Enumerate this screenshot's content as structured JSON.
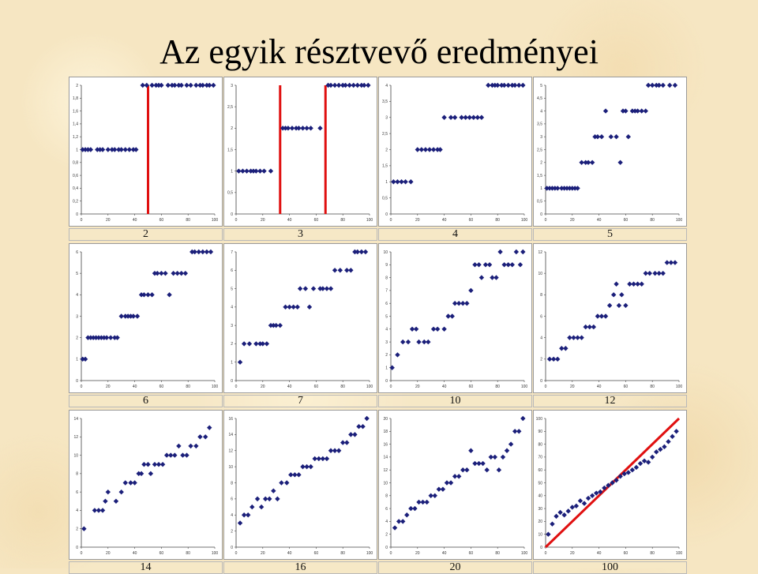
{
  "title": "Az egyik résztvevő eredményei",
  "chart_data": [
    {
      "type": "scatter",
      "caption": "2",
      "xlim": [
        0,
        100
      ],
      "ylim": [
        0,
        2
      ],
      "xticks": [
        "0",
        "20",
        "40",
        "60",
        "80",
        "100"
      ],
      "yticks": [
        "0",
        "0,2",
        "0,4",
        "0,6",
        "0,8",
        "1",
        "1,2",
        "1,4",
        "1,6",
        "1,8",
        "2"
      ],
      "vlines": [
        50
      ],
      "x": [
        1,
        3,
        5,
        7,
        12,
        14,
        16,
        20,
        23,
        25,
        28,
        30,
        33,
        36,
        39,
        41,
        46,
        49,
        53,
        56,
        58,
        60,
        65,
        68,
        70,
        73,
        75,
        79,
        82,
        86,
        89,
        91,
        94,
        96,
        99
      ],
      "y": [
        1,
        1,
        1,
        1,
        1,
        1,
        1,
        1,
        1,
        1,
        1,
        1,
        1,
        1,
        1,
        1,
        2,
        2,
        2,
        2,
        2,
        2,
        2,
        2,
        2,
        2,
        2,
        2,
        2,
        2,
        2,
        2,
        2,
        2,
        2
      ]
    },
    {
      "type": "scatter",
      "caption": "3",
      "xlim": [
        0,
        100
      ],
      "ylim": [
        0,
        3
      ],
      "xticks": [
        "0",
        "20",
        "40",
        "60",
        "80",
        "100"
      ],
      "yticks": [
        "0",
        "0,5",
        "1",
        "1,5",
        "2",
        "2,5",
        "3"
      ],
      "vlines": [
        33,
        67
      ],
      "x": [
        2,
        5,
        8,
        11,
        13,
        15,
        18,
        21,
        26,
        35,
        37,
        39,
        42,
        45,
        47,
        50,
        53,
        56,
        63,
        69,
        71,
        74,
        77,
        80,
        82,
        85,
        88,
        91,
        94,
        96,
        99
      ],
      "y": [
        1,
        1,
        1,
        1,
        1,
        1,
        1,
        1,
        1,
        2,
        2,
        2,
        2,
        2,
        2,
        2,
        2,
        2,
        2,
        3,
        3,
        3,
        3,
        3,
        3,
        3,
        3,
        3,
        3,
        3,
        3
      ]
    },
    {
      "type": "scatter",
      "caption": "4",
      "xlim": [
        0,
        100
      ],
      "ylim": [
        0,
        4
      ],
      "xticks": [
        "0",
        "20",
        "40",
        "60",
        "80",
        "100"
      ],
      "yticks": [
        "0",
        "0,5",
        "1",
        "1,5",
        "2",
        "2,5",
        "3",
        "3,5",
        "4"
      ],
      "x": [
        2,
        5,
        8,
        11,
        15,
        20,
        23,
        26,
        29,
        32,
        35,
        37,
        40,
        45,
        48,
        53,
        56,
        59,
        62,
        65,
        68,
        73,
        76,
        78,
        80,
        83,
        85,
        88,
        91,
        93,
        96,
        99
      ],
      "y": [
        1,
        1,
        1,
        1,
        1,
        2,
        2,
        2,
        2,
        2,
        2,
        2,
        3,
        3,
        3,
        3,
        3,
        3,
        3,
        3,
        3,
        4,
        4,
        4,
        4,
        4,
        4,
        4,
        4,
        4,
        4,
        4
      ]
    },
    {
      "type": "scatter",
      "caption": "5",
      "xlim": [
        0,
        100
      ],
      "ylim": [
        0,
        5
      ],
      "xticks": [
        "0",
        "20",
        "40",
        "60",
        "80",
        "100"
      ],
      "yticks": [
        "0",
        "0,5",
        "1",
        "1,5",
        "2",
        "2,5",
        "3",
        "3,5",
        "4",
        "4,5",
        "5"
      ],
      "x": [
        1,
        3,
        5,
        7,
        9,
        12,
        14,
        16,
        18,
        20,
        22,
        24,
        27,
        30,
        32,
        35,
        37,
        39,
        42,
        45,
        49,
        53,
        56,
        58,
        60,
        62,
        65,
        67,
        69,
        72,
        75,
        77,
        80,
        83,
        85,
        88,
        93,
        97
      ],
      "y": [
        1,
        1,
        1,
        1,
        1,
        1,
        1,
        1,
        1,
        1,
        1,
        1,
        2,
        2,
        2,
        2,
        3,
        3,
        3,
        4,
        3,
        3,
        2,
        4,
        4,
        3,
        4,
        4,
        4,
        4,
        4,
        5,
        5,
        5,
        5,
        5,
        5,
        5
      ]
    },
    {
      "type": "scatter",
      "caption": "6",
      "xlim": [
        0,
        100
      ],
      "ylim": [
        0,
        6
      ],
      "xticks": [
        "0",
        "20",
        "40",
        "60",
        "80",
        "100"
      ],
      "yticks": [
        "0",
        "1",
        "2",
        "3",
        "4",
        "5",
        "6"
      ],
      "x": [
        1,
        3,
        5,
        7,
        9,
        11,
        13,
        15,
        17,
        19,
        22,
        25,
        27,
        30,
        33,
        35,
        37,
        39,
        42,
        45,
        47,
        50,
        53,
        55,
        57,
        60,
        63,
        66,
        69,
        72,
        75,
        78,
        83,
        85,
        88,
        91,
        94,
        97
      ],
      "y": [
        1,
        1,
        2,
        2,
        2,
        2,
        2,
        2,
        2,
        2,
        2,
        2,
        2,
        3,
        3,
        3,
        3,
        3,
        3,
        4,
        4,
        4,
        4,
        5,
        5,
        5,
        5,
        4,
        5,
        5,
        5,
        5,
        6,
        6,
        6,
        6,
        6,
        6
      ]
    },
    {
      "type": "scatter",
      "caption": "7",
      "xlim": [
        0,
        100
      ],
      "ylim": [
        0,
        7
      ],
      "xticks": [
        "0",
        "20",
        "40",
        "60",
        "80",
        "100"
      ],
      "yticks": [
        "0",
        "1",
        "2",
        "3",
        "4",
        "5",
        "6",
        "7"
      ],
      "x": [
        3,
        6,
        10,
        15,
        18,
        20,
        23,
        26,
        28,
        30,
        33,
        37,
        40,
        43,
        46,
        48,
        52,
        55,
        58,
        63,
        65,
        68,
        71,
        74,
        78,
        83,
        86,
        89,
        91,
        94,
        97
      ],
      "y": [
        1,
        2,
        2,
        2,
        2,
        2,
        2,
        3,
        3,
        3,
        3,
        4,
        4,
        4,
        4,
        5,
        5,
        4,
        5,
        5,
        5,
        5,
        5,
        6,
        6,
        6,
        6,
        7,
        7,
        7,
        7
      ]
    },
    {
      "type": "scatter",
      "caption": "10",
      "xlim": [
        0,
        100
      ],
      "ylim": [
        0,
        10
      ],
      "xticks": [
        "0",
        "20",
        "40",
        "60",
        "80",
        "100"
      ],
      "yticks": [
        "0",
        "1",
        "2",
        "3",
        "4",
        "5",
        "6",
        "7",
        "8",
        "9",
        "10"
      ],
      "x": [
        1,
        5,
        9,
        13,
        16,
        19,
        21,
        25,
        28,
        32,
        35,
        40,
        43,
        46,
        48,
        51,
        54,
        57,
        60,
        63,
        66,
        68,
        71,
        74,
        76,
        79,
        82,
        85,
        88,
        91,
        94,
        97,
        99
      ],
      "y": [
        1,
        2,
        3,
        3,
        4,
        4,
        3,
        3,
        3,
        4,
        4,
        4,
        5,
        5,
        6,
        6,
        6,
        6,
        7,
        9,
        9,
        8,
        9,
        9,
        8,
        8,
        10,
        9,
        9,
        9,
        10,
        9,
        10
      ]
    },
    {
      "type": "scatter",
      "caption": "12",
      "xlim": [
        0,
        100
      ],
      "ylim": [
        0,
        12
      ],
      "xticks": [
        "0",
        "20",
        "40",
        "60",
        "80",
        "100"
      ],
      "yticks": [
        "0",
        "2",
        "4",
        "6",
        "8",
        "10",
        "12"
      ],
      "x": [
        3,
        6,
        9,
        12,
        15,
        18,
        21,
        24,
        27,
        30,
        33,
        36,
        39,
        42,
        45,
        48,
        51,
        53,
        55,
        57,
        60,
        63,
        66,
        69,
        72,
        75,
        78,
        82,
        85,
        88,
        91,
        94,
        97
      ],
      "y": [
        2,
        2,
        2,
        3,
        3,
        4,
        4,
        4,
        4,
        5,
        5,
        5,
        6,
        6,
        6,
        7,
        8,
        9,
        7,
        8,
        7,
        9,
        9,
        9,
        9,
        10,
        10,
        10,
        10,
        10,
        11,
        11,
        11
      ]
    },
    {
      "type": "scatter",
      "caption": "14",
      "xlim": [
        0,
        100
      ],
      "ylim": [
        0,
        14
      ],
      "xticks": [
        "0",
        "20",
        "40",
        "60",
        "80",
        "100"
      ],
      "yticks": [
        "0",
        "2",
        "4",
        "6",
        "8",
        "10",
        "12",
        "14"
      ],
      "x": [
        2,
        10,
        13,
        16,
        18,
        20,
        26,
        30,
        33,
        37,
        40,
        43,
        45,
        47,
        50,
        52,
        55,
        58,
        61,
        64,
        67,
        70,
        73,
        76,
        79,
        82,
        86,
        89,
        93,
        96
      ],
      "y": [
        2,
        4,
        4,
        4,
        5,
        6,
        5,
        6,
        7,
        7,
        7,
        8,
        8,
        9,
        9,
        8,
        9,
        9,
        9,
        10,
        10,
        10,
        11,
        10,
        10,
        11,
        11,
        12,
        12,
        13
      ]
    },
    {
      "type": "scatter",
      "caption": "16",
      "xlim": [
        0,
        100
      ],
      "ylim": [
        0,
        16
      ],
      "xticks": [
        "0",
        "20",
        "40",
        "60",
        "80",
        "100"
      ],
      "yticks": [
        "0",
        "2",
        "4",
        "6",
        "8",
        "10",
        "12",
        "14",
        "16"
      ],
      "x": [
        3,
        6,
        9,
        12,
        16,
        19,
        22,
        25,
        28,
        31,
        34,
        38,
        41,
        44,
        47,
        50,
        53,
        56,
        59,
        62,
        65,
        68,
        71,
        74,
        77,
        80,
        83,
        86,
        89,
        92,
        95,
        98
      ],
      "y": [
        3,
        4,
        4,
        5,
        6,
        5,
        6,
        6,
        7,
        6,
        8,
        8,
        9,
        9,
        9,
        10,
        10,
        10,
        11,
        11,
        11,
        11,
        12,
        12,
        12,
        13,
        13,
        14,
        14,
        15,
        15,
        16
      ]
    },
    {
      "type": "scatter",
      "caption": "20",
      "xlim": [
        0,
        100
      ],
      "ylim": [
        0,
        20
      ],
      "xticks": [
        "0",
        "20",
        "40",
        "60",
        "80",
        "100"
      ],
      "yticks": [
        "0",
        "2",
        "4",
        "6",
        "8",
        "10",
        "12",
        "14",
        "16",
        "18",
        "20"
      ],
      "x": [
        3,
        6,
        9,
        12,
        15,
        18,
        21,
        24,
        27,
        30,
        33,
        36,
        39,
        42,
        45,
        48,
        51,
        54,
        57,
        60,
        63,
        66,
        69,
        72,
        75,
        78,
        81,
        84,
        87,
        90,
        93,
        96,
        99
      ],
      "y": [
        3,
        4,
        4,
        5,
        6,
        6,
        7,
        7,
        7,
        8,
        8,
        9,
        9,
        10,
        10,
        11,
        11,
        12,
        12,
        15,
        13,
        13,
        13,
        12,
        14,
        14,
        12,
        14,
        15,
        16,
        18,
        18,
        20
      ]
    },
    {
      "type": "scatter",
      "caption": "100",
      "xlim": [
        0,
        100
      ],
      "ylim": [
        0,
        100
      ],
      "xticks": [
        "0",
        "20",
        "40",
        "60",
        "80",
        "100"
      ],
      "yticks": [
        "0",
        "10",
        "20",
        "30",
        "40",
        "50",
        "60",
        "70",
        "80",
        "90",
        "100"
      ],
      "diagonal": true,
      "x": [
        2,
        5,
        8,
        11,
        14,
        17,
        20,
        23,
        26,
        29,
        32,
        35,
        38,
        41,
        44,
        47,
        50,
        53,
        56,
        59,
        62,
        65,
        68,
        71,
        74,
        77,
        80,
        83,
        86,
        89,
        92,
        95,
        98
      ],
      "y": [
        10,
        18,
        24,
        27,
        25,
        28,
        31,
        32,
        36,
        34,
        38,
        40,
        42,
        43,
        46,
        48,
        50,
        52,
        55,
        57,
        58,
        60,
        62,
        65,
        67,
        66,
        70,
        74,
        76,
        78,
        82,
        86,
        90
      ]
    }
  ]
}
